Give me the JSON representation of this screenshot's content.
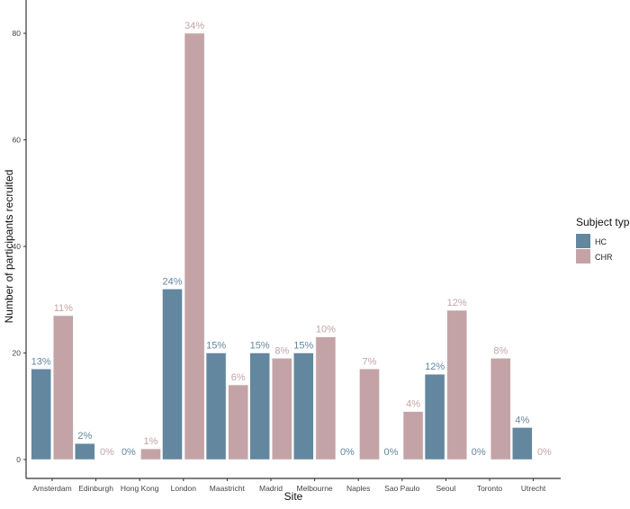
{
  "chart_data": {
    "type": "bar",
    "title": "",
    "xlabel": "Site",
    "ylabel": "Number of participants recruited",
    "ylim": [
      -4,
      86
    ],
    "yticks": [
      0,
      20,
      40,
      60,
      80
    ],
    "grid": false,
    "legend_title": "Subject type",
    "legend_position": "right",
    "categories": [
      "Amsterdam",
      "Edinburgh",
      "Hong Kong",
      "London",
      "Maastricht",
      "Madrid",
      "Melbourne",
      "Naples",
      "Sao Paulo",
      "Seoul",
      "Toronto",
      "Utrecht"
    ],
    "series": [
      {
        "name": "HC",
        "color": "#62879f",
        "values": [
          17,
          3,
          0,
          32,
          20,
          20,
          20,
          0,
          0,
          16,
          0,
          6
        ],
        "labels": [
          "13%",
          "2%",
          "0%",
          "24%",
          "15%",
          "15%",
          "15%",
          "0%",
          "0%",
          "12%",
          "0%",
          "4%"
        ]
      },
      {
        "name": "CHR",
        "color": "#c4a3a7",
        "values": [
          27,
          0,
          2,
          80,
          14,
          19,
          23,
          17,
          9,
          28,
          19,
          0
        ],
        "labels": [
          "11%",
          "0%",
          "1%",
          "34%",
          "6%",
          "8%",
          "10%",
          "7%",
          "4%",
          "12%",
          "8%",
          "0%"
        ]
      }
    ]
  }
}
